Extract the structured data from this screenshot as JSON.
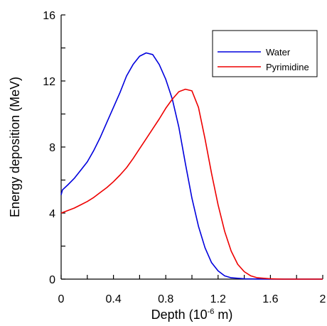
{
  "chart_data": {
    "type": "line",
    "xlabel": {
      "prefix": "Depth (10",
      "exponent": "-6",
      "suffix": " m)"
    },
    "ylabel": "Energy deposition (MeV)",
    "xlim": [
      0,
      2
    ],
    "ylim": [
      0,
      16
    ],
    "x_ticks": [
      0,
      0.2,
      0.4,
      0.6,
      0.8,
      1.0,
      1.2,
      1.4,
      1.6,
      1.8,
      2.0
    ],
    "x_tick_labels": [
      "0",
      "",
      "0.4",
      "",
      "0.8",
      "",
      "1.2",
      "",
      "1.6",
      "",
      "2"
    ],
    "y_ticks": [
      0,
      2,
      4,
      6,
      8,
      10,
      12,
      14,
      16
    ],
    "y_tick_labels": [
      "0",
      "",
      "4",
      "",
      "8",
      "",
      "12",
      "",
      "16"
    ],
    "grid": false,
    "legend_position": "top-right",
    "series": [
      {
        "name": "Water",
        "color": "#0000dd",
        "points": [
          [
            0.0,
            5.1
          ],
          [
            0.01,
            5.4
          ],
          [
            0.05,
            5.7
          ],
          [
            0.1,
            6.1
          ],
          [
            0.15,
            6.6
          ],
          [
            0.2,
            7.1
          ],
          [
            0.25,
            7.8
          ],
          [
            0.3,
            8.6
          ],
          [
            0.35,
            9.5
          ],
          [
            0.4,
            10.4
          ],
          [
            0.45,
            11.3
          ],
          [
            0.5,
            12.3
          ],
          [
            0.55,
            13.0
          ],
          [
            0.6,
            13.5
          ],
          [
            0.65,
            13.7
          ],
          [
            0.7,
            13.6
          ],
          [
            0.75,
            13.0
          ],
          [
            0.8,
            12.1
          ],
          [
            0.85,
            10.9
          ],
          [
            0.9,
            9.2
          ],
          [
            0.95,
            7.0
          ],
          [
            1.0,
            4.9
          ],
          [
            1.05,
            3.2
          ],
          [
            1.1,
            1.9
          ],
          [
            1.15,
            1.0
          ],
          [
            1.2,
            0.5
          ],
          [
            1.25,
            0.2
          ],
          [
            1.3,
            0.08
          ],
          [
            1.4,
            0.02
          ],
          [
            1.5,
            0.01
          ],
          [
            1.6,
            0.0
          ],
          [
            1.8,
            0.0
          ],
          [
            2.0,
            0.0
          ]
        ]
      },
      {
        "name": "Pyrimidine",
        "color": "#ee0000",
        "points": [
          [
            0.0,
            4.0
          ],
          [
            0.05,
            4.15
          ],
          [
            0.1,
            4.3
          ],
          [
            0.15,
            4.5
          ],
          [
            0.2,
            4.7
          ],
          [
            0.25,
            4.95
          ],
          [
            0.3,
            5.25
          ],
          [
            0.35,
            5.55
          ],
          [
            0.4,
            5.9
          ],
          [
            0.45,
            6.3
          ],
          [
            0.5,
            6.75
          ],
          [
            0.55,
            7.3
          ],
          [
            0.6,
            7.9
          ],
          [
            0.65,
            8.5
          ],
          [
            0.7,
            9.1
          ],
          [
            0.75,
            9.7
          ],
          [
            0.8,
            10.35
          ],
          [
            0.85,
            10.9
          ],
          [
            0.9,
            11.35
          ],
          [
            0.95,
            11.5
          ],
          [
            1.0,
            11.4
          ],
          [
            1.05,
            10.4
          ],
          [
            1.1,
            8.5
          ],
          [
            1.15,
            6.4
          ],
          [
            1.2,
            4.5
          ],
          [
            1.25,
            2.9
          ],
          [
            1.3,
            1.7
          ],
          [
            1.35,
            0.9
          ],
          [
            1.4,
            0.45
          ],
          [
            1.45,
            0.2
          ],
          [
            1.5,
            0.08
          ],
          [
            1.6,
            0.02
          ],
          [
            1.7,
            0.0
          ],
          [
            1.8,
            0.0
          ],
          [
            2.0,
            0.0
          ]
        ]
      }
    ]
  }
}
